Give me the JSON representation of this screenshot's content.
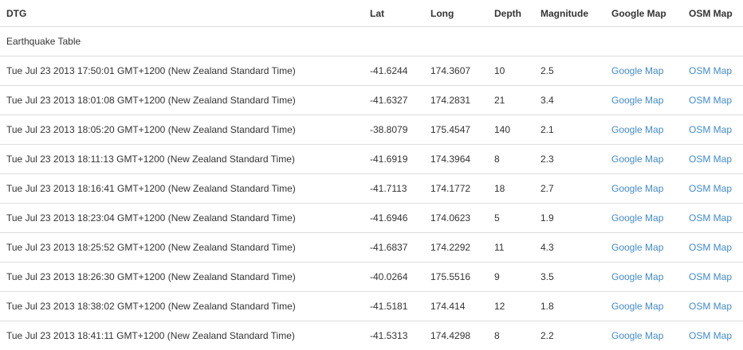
{
  "table": {
    "headers": [
      "DTG",
      "Lat",
      "Long",
      "Depth",
      "Magnitude",
      "Google Map",
      "OSM Map"
    ],
    "caption": "Earthquake Table",
    "link_labels": {
      "google": "Google Map",
      "osm": "OSM Map"
    },
    "rows": [
      {
        "dtg": "Tue Jul 23 2013 17:50:01 GMT+1200 (New Zealand Standard Time)",
        "lat": "-41.6244",
        "long": "174.3607",
        "depth": "10",
        "magnitude": "2.5"
      },
      {
        "dtg": "Tue Jul 23 2013 18:01:08 GMT+1200 (New Zealand Standard Time)",
        "lat": "-41.6327",
        "long": "174.2831",
        "depth": "21",
        "magnitude": "3.4"
      },
      {
        "dtg": "Tue Jul 23 2013 18:05:20 GMT+1200 (New Zealand Standard Time)",
        "lat": "-38.8079",
        "long": "175.4547",
        "depth": "140",
        "magnitude": "2.1"
      },
      {
        "dtg": "Tue Jul 23 2013 18:11:13 GMT+1200 (New Zealand Standard Time)",
        "lat": "-41.6919",
        "long": "174.3964",
        "depth": "8",
        "magnitude": "2.3"
      },
      {
        "dtg": "Tue Jul 23 2013 18:16:41 GMT+1200 (New Zealand Standard Time)",
        "lat": "-41.7113",
        "long": "174.1772",
        "depth": "18",
        "magnitude": "2.7"
      },
      {
        "dtg": "Tue Jul 23 2013 18:23:04 GMT+1200 (New Zealand Standard Time)",
        "lat": "-41.6946",
        "long": "174.0623",
        "depth": "5",
        "magnitude": "1.9"
      },
      {
        "dtg": "Tue Jul 23 2013 18:25:52 GMT+1200 (New Zealand Standard Time)",
        "lat": "-41.6837",
        "long": "174.2292",
        "depth": "11",
        "magnitude": "4.3"
      },
      {
        "dtg": "Tue Jul 23 2013 18:26:30 GMT+1200 (New Zealand Standard Time)",
        "lat": "-40.0264",
        "long": "175.5516",
        "depth": "9",
        "magnitude": "3.5"
      },
      {
        "dtg": "Tue Jul 23 2013 18:38:02 GMT+1200 (New Zealand Standard Time)",
        "lat": "-41.5181",
        "long": "174.414",
        "depth": "12",
        "magnitude": "1.8"
      },
      {
        "dtg": "Tue Jul 23 2013 18:41:11 GMT+1200 (New Zealand Standard Time)",
        "lat": "-41.5313",
        "long": "174.4298",
        "depth": "8",
        "magnitude": "2.2"
      }
    ]
  },
  "colors": {
    "text": "#333333",
    "link": "#428bca",
    "border": "#dddddd"
  }
}
